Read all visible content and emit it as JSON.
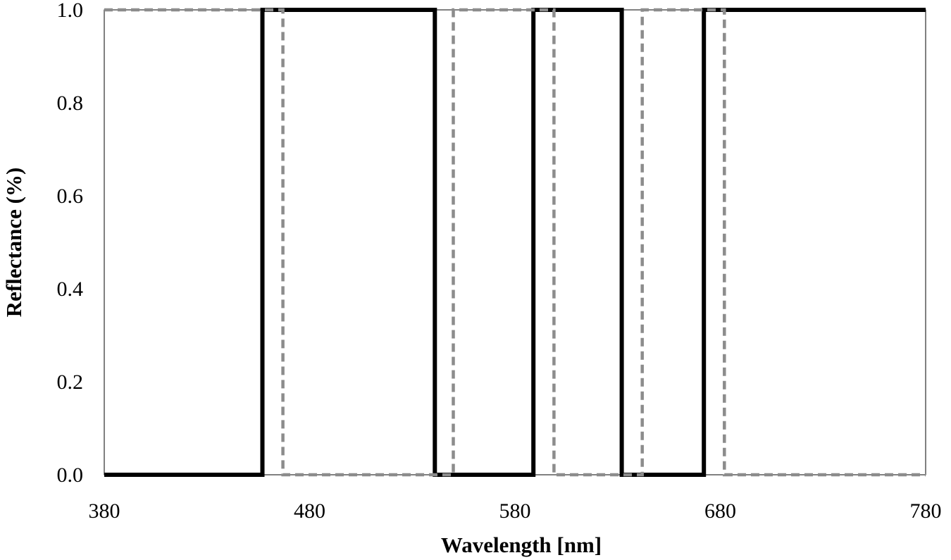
{
  "chart_data": {
    "type": "line",
    "title": "",
    "xlabel": "Wavelength [nm]",
    "ylabel": "Reflectance (%)",
    "xlim": [
      380,
      780
    ],
    "ylim": [
      0.0,
      1.0
    ],
    "grid": false,
    "legend": "none",
    "x_ticks": [
      "380",
      "480",
      "580",
      "680",
      "780"
    ],
    "y_ticks": [
      "0.0",
      "0.2",
      "0.4",
      "0.6",
      "0.8",
      "1.0"
    ],
    "series": [
      {
        "color": "#000000",
        "style": "solid",
        "x": [
          380,
          457,
          457,
          541,
          541,
          589,
          589,
          632,
          632,
          672,
          672,
          780
        ],
        "y": [
          0,
          0,
          1,
          1,
          0,
          0,
          1,
          1,
          0,
          0,
          1,
          1
        ]
      },
      {
        "color": "#8c8c8c",
        "style": "dashed",
        "x": [
          380,
          467,
          467,
          550,
          550,
          599,
          599,
          642,
          642,
          682,
          682,
          780
        ],
        "y": [
          1,
          1,
          0,
          0,
          1,
          1,
          0,
          0,
          1,
          1,
          0,
          0
        ]
      }
    ]
  }
}
